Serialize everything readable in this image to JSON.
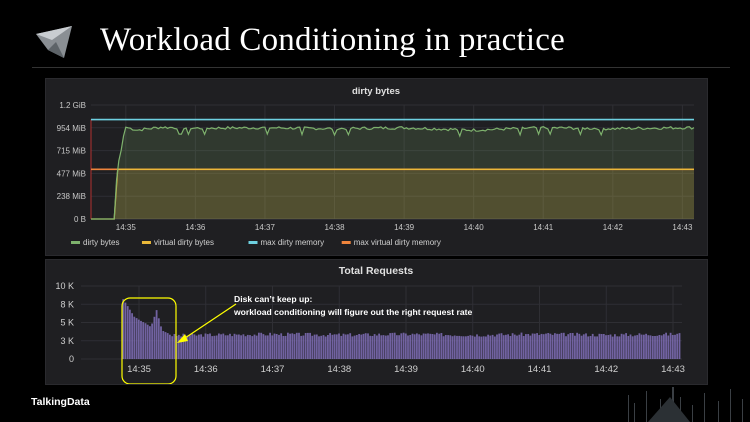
{
  "slide": {
    "title": "Workload Conditioning in practice",
    "brand": "TalkingData"
  },
  "colors": {
    "dirty_bytes": "#7eb26d",
    "virtual_dirty_bytes": "#eab839",
    "max_dirty_memory": "#6ed0e0",
    "max_virtual_dirty_memory": "#ef843c",
    "requests_bars": "#806eb7",
    "annotation": "#ffff00"
  },
  "chart_data": [
    {
      "type": "area",
      "title": "dirty bytes",
      "y_ticks": [
        "1.2 GiB",
        "954 MiB",
        "715 MiB",
        "477 MiB",
        "238 MiB",
        "0 B"
      ],
      "x_ticks": [
        "14:35",
        "14:36",
        "14:37",
        "14:38",
        "14:39",
        "14:40",
        "14:41",
        "14:42",
        "14:43"
      ],
      "ylim_mib": [
        0,
        1192
      ],
      "x_range": [
        "14:34:30",
        "14:43:10"
      ],
      "grid": true,
      "legend_position": "bottom",
      "series": [
        {
          "name": "dirty bytes",
          "unit": "MiB",
          "x": [
            "14:34:30",
            "14:34:50",
            "14:34:53",
            "14:34:55",
            "14:34:57",
            "14:35:00",
            "14:35:10",
            "14:35:30",
            "14:36:00",
            "14:37:00",
            "14:38:00",
            "14:39:00",
            "14:40:00",
            "14:41:00",
            "14:42:00",
            "14:43:00"
          ],
          "values": [
            0,
            0,
            600,
            620,
            820,
            960,
            930,
            960,
            950,
            955,
            945,
            955,
            930,
            955,
            945,
            955
          ]
        },
        {
          "name": "virtual dirty bytes",
          "unit": "MiB",
          "x": [
            "14:34:30",
            "14:34:50",
            "14:34:53",
            "14:43:10"
          ],
          "values": [
            0,
            0,
            520,
            520
          ]
        },
        {
          "name": "max dirty memory",
          "unit": "MiB",
          "x": [
            "14:34:30",
            "14:43:10"
          ],
          "values": [
            1040,
            1040
          ]
        },
        {
          "name": "max virtual dirty memory",
          "unit": "MiB",
          "x": [
            "14:34:30",
            "14:43:10"
          ],
          "values": [
            520,
            520
          ]
        }
      ]
    },
    {
      "type": "bar",
      "title": "Total Requests",
      "y_ticks": [
        "10 K",
        "8 K",
        "5 K",
        "3 K",
        "0"
      ],
      "x_ticks": [
        "14:35",
        "14:36",
        "14:37",
        "14:38",
        "14:39",
        "14:40",
        "14:41",
        "14:42",
        "14:43"
      ],
      "ylim": [
        0,
        10000
      ],
      "grid": true,
      "series": [
        {
          "name": "Total Requests",
          "x": [
            "14:34:45",
            "14:34:50",
            "14:34:55",
            "14:35:00",
            "14:35:05",
            "14:35:10",
            "14:35:15",
            "14:35:20",
            "14:35:30",
            "14:36:00",
            "14:37:00",
            "14:38:00",
            "14:39:00",
            "14:40:00",
            "14:41:00",
            "14:42:00",
            "14:43:00"
          ],
          "values": [
            8200,
            7000,
            5800,
            5300,
            4900,
            4400,
            6700,
            3900,
            3200,
            3300,
            3400,
            3300,
            3400,
            3300,
            3400,
            3300,
            3400
          ]
        }
      ],
      "annotation": {
        "text_line1": "Disk can’t keep up:",
        "text_line2": "workload conditioning will figure out the right request rate"
      }
    }
  ]
}
